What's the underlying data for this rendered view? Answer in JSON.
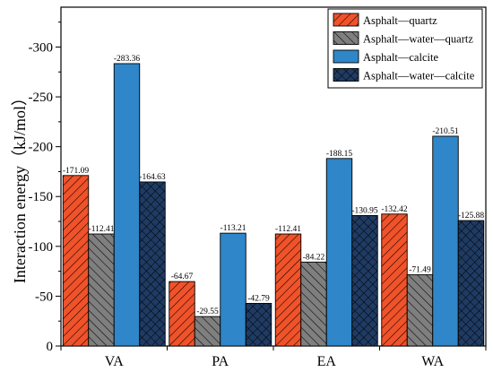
{
  "chart_data": {
    "type": "bar",
    "title": "",
    "xlabel": "",
    "ylabel": "Interaction energy（kJ/mol）",
    "categories": [
      "VA",
      "PA",
      "EA",
      "WA"
    ],
    "ylim": [
      0,
      -340
    ],
    "yticks": [
      0,
      -50,
      -100,
      -150,
      -200,
      -250,
      -300
    ],
    "ytick_labels": [
      "0",
      "-50",
      "-100",
      "-150",
      "-200",
      "-250",
      "-300"
    ],
    "legend_position": "top-right",
    "grid": false,
    "series": [
      {
        "name": "Asphalt—quartz",
        "values": [
          -171.09,
          -64.67,
          -112.41,
          -132.42
        ],
        "value_labels": [
          "-171.09",
          "-64.67",
          "-112.41",
          "-132.42"
        ],
        "color": "#f0522a",
        "pattern": "diagonal-right"
      },
      {
        "name": "Asphalt—water—quartz",
        "values": [
          -112.41,
          -29.55,
          -84.22,
          -71.49
        ],
        "value_labels": [
          "-112.41",
          "-29.55",
          "-84.22",
          "-71.49"
        ],
        "color": "#7f7f7f",
        "pattern": "diagonal-left"
      },
      {
        "name": "Asphalt—calcite",
        "values": [
          -283.36,
          -113.21,
          -188.15,
          -210.51
        ],
        "value_labels": [
          "-283.36",
          "-113.21",
          "-188.15",
          "-210.51"
        ],
        "color": "#2f86c8",
        "pattern": "solid"
      },
      {
        "name": "Asphalt—water—calcite",
        "values": [
          -164.63,
          -42.79,
          -130.95,
          -125.88
        ],
        "value_labels": [
          "-164.63",
          "-42.79",
          "-130.95",
          "-125.88"
        ],
        "color": "#1f3b63",
        "pattern": "crosshatch"
      }
    ]
  }
}
